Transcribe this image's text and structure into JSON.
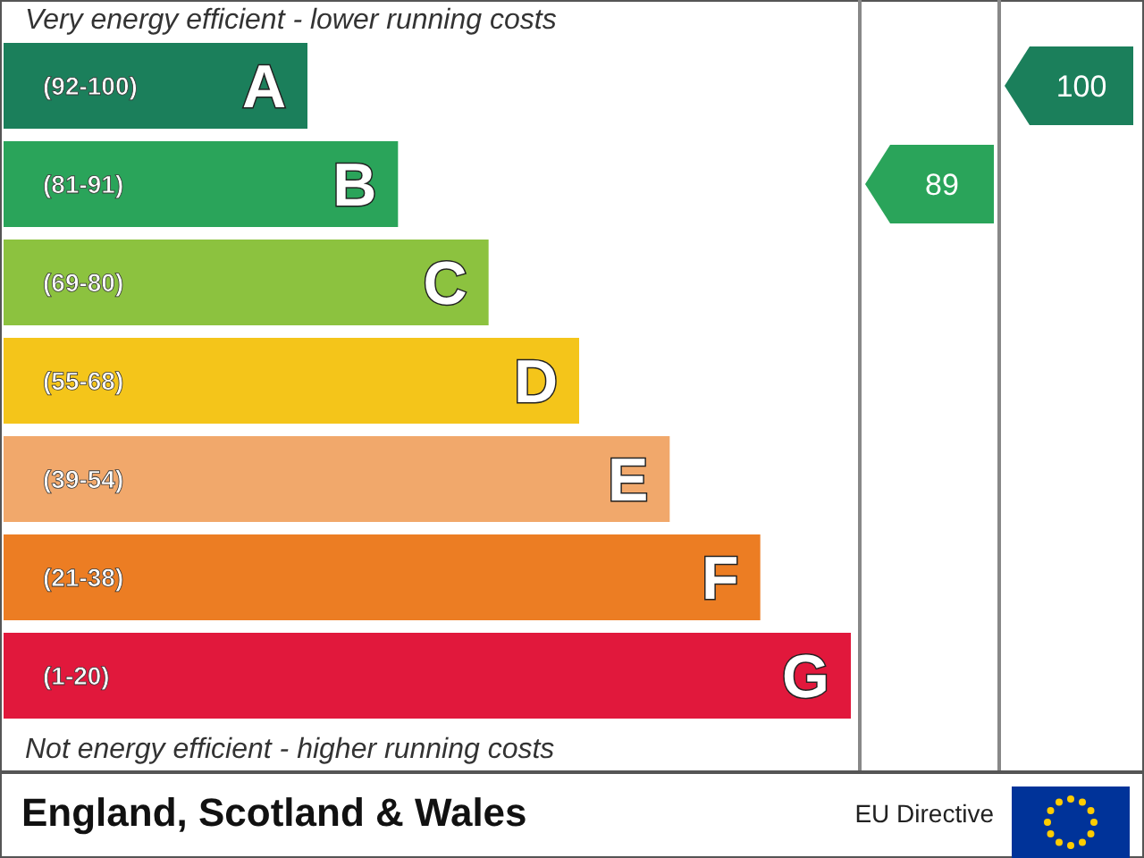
{
  "chart_data": {
    "type": "other",
    "categories": [
      "(92-100)",
      "(81-91)",
      "(69-80)",
      "(55-68)",
      "(39-54)",
      "(21-38)",
      "(1-20)"
    ],
    "value_labels": [
      "A",
      "B",
      "C",
      "D",
      "E",
      "F",
      "G"
    ],
    "colors": [
      "#1b7f5b",
      "#2aa45a",
      "#8cc23f",
      "#f4c51a",
      "#f1a86b",
      "#ec7d23",
      "#e1183c"
    ],
    "data_labels": true,
    "series": [
      {
        "color": "#2aa45a",
        "values": [
          null,
          89,
          null,
          null,
          null,
          null,
          null
        ]
      },
      {
        "color": "#1b7f5b",
        "values": [
          100,
          null,
          null,
          null,
          null,
          null,
          null
        ]
      }
    ],
    "annotations": [
      "Very energy efficient - lower running costs",
      "Not energy efficient - higher running costs",
      "England, Scotland & Wales",
      "EU Directive"
    ]
  }
}
